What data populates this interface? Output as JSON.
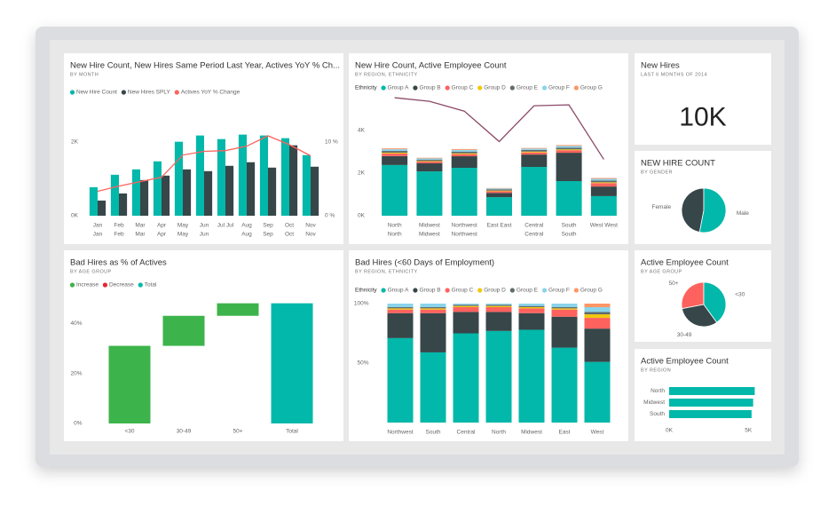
{
  "chart_data": [
    {
      "type": "bar",
      "title": "New Hire Count, New Hires Same Period Last Year, Actives YoY % Ch...",
      "subtitle": "BY MONTH",
      "categories": [
        [
          "Jan",
          "Jan"
        ],
        [
          "Feb",
          "Feb"
        ],
        [
          "Mar",
          "Mar"
        ],
        [
          "Apr",
          "Apr"
        ],
        [
          "May",
          "May"
        ],
        [
          "Jun",
          "Jun"
        ],
        [
          "Jul Jul"
        ],
        [
          "Aug",
          "Aug"
        ],
        [
          "Sep",
          "Sep"
        ],
        [
          "Oct",
          "Oct"
        ],
        [
          "Nov",
          "Nov"
        ]
      ],
      "series": [
        {
          "name": "New Hire Count",
          "color": "#01b8aa",
          "values": [
            771,
            1108,
            1253,
            1470,
            2000,
            2169,
            2072,
            2193,
            2169,
            2096,
            1639
          ]
        },
        {
          "name": "New Hires SPLY",
          "color": "#374649",
          "values": [
            410,
            602,
            964,
            1084,
            1253,
            1205,
            1349,
            1446,
            1301,
            1904,
            1325
          ]
        },
        {
          "name": "Actives YoY % Change",
          "color": "#fd625e",
          "type": "line",
          "axis": "y2",
          "values": [
            3.3,
            4.0,
            4.6,
            5.2,
            8.2,
            8.7,
            8.8,
            9.4,
            10.8,
            9.6,
            8.1
          ]
        }
      ],
      "ylim": [
        0,
        2400
      ],
      "yticks": [
        {
          "value": 0,
          "label": "0K"
        },
        {
          "value": 2000,
          "label": "2K"
        }
      ],
      "y2lim": [
        0,
        12
      ],
      "y2ticks": [
        {
          "value": 0,
          "label": "0 %"
        },
        {
          "value": 10,
          "label": "10 %"
        }
      ]
    },
    {
      "type": "stacked_bar",
      "title": "New Hire Count, Active Employee Count",
      "subtitle": "BY REGION, ETHNICITY",
      "legend_title": "Ethnicity",
      "categories": [
        [
          "North",
          "North"
        ],
        [
          "Midwest",
          "Midwest"
        ],
        [
          "Northwest",
          "Northwest"
        ],
        [
          "East East"
        ],
        [
          "Central",
          "Central"
        ],
        [
          "South",
          "South"
        ],
        [
          "West West"
        ]
      ],
      "series": [
        {
          "name": "Group A",
          "color": "#01b8aa",
          "values": [
            2380,
            2080,
            2250,
            870,
            2290,
            1625,
            920
          ]
        },
        {
          "name": "Group B",
          "color": "#374649",
          "values": [
            420,
            380,
            540,
            200,
            580,
            1330,
            450
          ]
        },
        {
          "name": "Group C",
          "color": "#fd625e",
          "values": [
            120,
            80,
            100,
            80,
            100,
            120,
            160
          ]
        },
        {
          "name": "Group D",
          "color": "#f2c80f",
          "values": [
            40,
            30,
            40,
            30,
            40,
            40,
            40
          ]
        },
        {
          "name": "Group E",
          "color": "#5f6b6d",
          "values": [
            80,
            60,
            80,
            60,
            80,
            80,
            80
          ]
        },
        {
          "name": "Group F",
          "color": "#8ad4eb",
          "values": [
            80,
            60,
            80,
            40,
            60,
            80,
            80
          ]
        },
        {
          "name": "Group G",
          "color": "#fe9666",
          "values": [
            40,
            30,
            40,
            20,
            30,
            40,
            40
          ]
        },
        {
          "color": "#8b4a68",
          "type": "line",
          "axis": "y2",
          "values": [
            7385,
            7160,
            6545,
            4643,
            6881,
            6937,
            3524
          ]
        }
      ],
      "ylim": [
        0,
        6000
      ],
      "yticks": [
        {
          "value": 0,
          "label": "0K"
        },
        {
          "value": 2000,
          "label": "2K"
        },
        {
          "value": 4000,
          "label": "4K"
        }
      ],
      "y2lim": [
        0,
        8000
      ]
    },
    {
      "type": "card",
      "title": "New Hires",
      "subtitle": "LAST 6 MONTHS OF 2014",
      "value": 10000,
      "value_label": "10K"
    },
    {
      "type": "pie",
      "title": "NEW HIRE COUNT",
      "subtitle": "BY GENDER",
      "labels": [
        "Female",
        "Male"
      ],
      "values": [
        47,
        53
      ],
      "colors": [
        "#374649",
        "#01b8aa"
      ]
    },
    {
      "type": "waterfall",
      "title": "Bad Hires as % of Actives",
      "subtitle": "BY AGE GROUP",
      "categories": [
        "<30",
        "30-49",
        "50+",
        "Total"
      ],
      "series": [
        {
          "name": "Increase",
          "color": "#3cb44b",
          "values": [
            31,
            12,
            5,
            null
          ]
        },
        {
          "name": "Decrease",
          "color": "#e8262e",
          "values": [
            null,
            null,
            null,
            null
          ]
        },
        {
          "name": "Total",
          "color": "#01b8aa",
          "values": [
            null,
            null,
            null,
            48
          ]
        }
      ],
      "ylim": [
        0,
        50
      ],
      "yticks": [
        {
          "value": 0,
          "label": "0%"
        },
        {
          "value": 20,
          "label": "20%"
        },
        {
          "value": 40,
          "label": "40%"
        }
      ]
    },
    {
      "type": "stacked_bar",
      "title": "Bad Hires (<60 Days of Employment)",
      "subtitle": "BY REGION, ETHNICITY",
      "legend_title": "Ethnicity",
      "categories": [
        [
          "Northwest"
        ],
        [
          "South"
        ],
        [
          "Central"
        ],
        [
          "North"
        ],
        [
          "Midwest"
        ],
        [
          "East"
        ],
        [
          "West"
        ]
      ],
      "series": [
        {
          "name": "Group A",
          "color": "#01b8aa",
          "values": [
            71,
            59,
            75,
            77,
            78,
            63,
            51
          ]
        },
        {
          "name": "Group B",
          "color": "#374649",
          "values": [
            21,
            33,
            18,
            16,
            14,
            26,
            28
          ]
        },
        {
          "name": "Group C",
          "color": "#fd625e",
          "values": [
            3,
            3,
            4,
            4,
            4,
            6,
            9
          ]
        },
        {
          "name": "Group D",
          "color": "#f2c80f",
          "values": [
            1,
            1,
            1,
            1,
            1,
            1,
            3
          ]
        },
        {
          "name": "Group E",
          "color": "#5f6b6d",
          "values": [
            1,
            1,
            1,
            1,
            1,
            1,
            2
          ]
        },
        {
          "name": "Group F",
          "color": "#8ad4eb",
          "values": [
            3,
            3,
            1,
            1,
            2,
            3,
            4
          ]
        },
        {
          "name": "Group G",
          "color": "#fe9666",
          "values": [
            0,
            0,
            0,
            0,
            0,
            0,
            3
          ]
        }
      ],
      "ylim": [
        0,
        100
      ],
      "yticks": [
        {
          "value": 50,
          "label": "50%"
        },
        {
          "value": 100,
          "label": "100%"
        }
      ]
    },
    {
      "type": "pie",
      "title": "Active Employee Count",
      "subtitle": "BY AGE GROUP",
      "labels": [
        "50+",
        "30-49",
        "<30"
      ],
      "values": [
        28,
        32,
        40
      ],
      "colors": [
        "#fd625e",
        "#374649",
        "#01b8aa"
      ]
    },
    {
      "type": "hbar",
      "title": "Active Employee Count",
      "subtitle": "BY REGION",
      "categories": [
        "North",
        "Midwest",
        "South"
      ],
      "values": [
        5400,
        5300,
        5200
      ],
      "color": "#01b8aa",
      "xlim": [
        0,
        5600
      ],
      "xticks": [
        {
          "value": 0,
          "label": "0K"
        },
        {
          "value": 5000,
          "label": "5K"
        }
      ]
    }
  ]
}
